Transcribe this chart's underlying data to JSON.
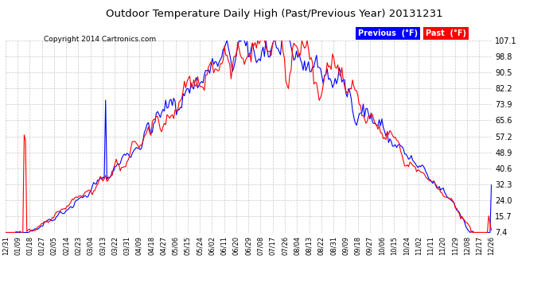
{
  "title": "Outdoor Temperature Daily High (Past/Previous Year) 20131231",
  "copyright": "Copyright 2014 Cartronics.com",
  "legend_label_prev": "Previous  (°F)",
  "legend_label_past": "Past  (°F)",
  "yticks": [
    7.4,
    15.7,
    24.0,
    32.3,
    40.6,
    48.9,
    57.2,
    65.6,
    73.9,
    82.2,
    90.5,
    98.8,
    107.1
  ],
  "ylim": [
    7.4,
    107.1
  ],
  "background_color": "#ffffff",
  "plot_bg_color": "#ffffff",
  "grid_color": "#c8c8c8",
  "line_color_prev": "blue",
  "line_color_past": "red",
  "line_width": 0.8,
  "xtick_labels": [
    "12/31",
    "01/09",
    "01/18",
    "01/27",
    "02/05",
    "02/14",
    "02/23",
    "03/04",
    "03/13",
    "03/22",
    "03/31",
    "04/09",
    "04/18",
    "04/27",
    "05/06",
    "05/15",
    "05/24",
    "06/02",
    "06/11",
    "06/20",
    "06/29",
    "07/08",
    "07/17",
    "07/26",
    "08/04",
    "08/13",
    "08/22",
    "08/31",
    "09/09",
    "09/18",
    "09/27",
    "10/06",
    "10/15",
    "10/24",
    "11/02",
    "11/11",
    "11/20",
    "11/29",
    "12/08",
    "12/17",
    "12/26"
  ]
}
